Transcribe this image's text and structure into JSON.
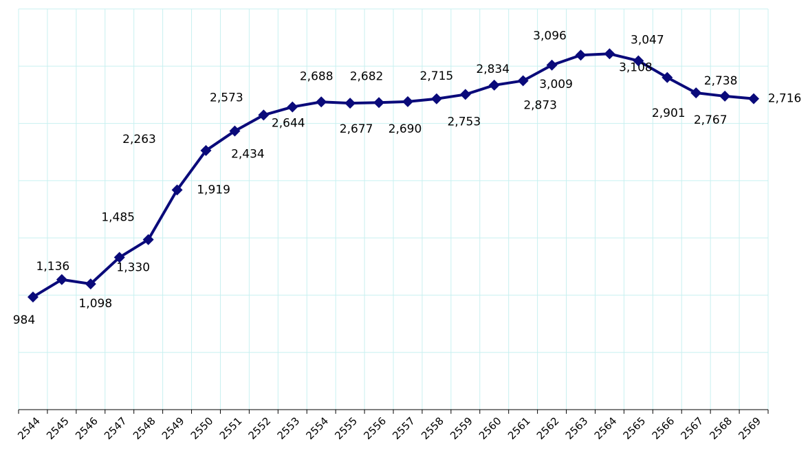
{
  "chart_data": {
    "type": "line",
    "categories": [
      "2544",
      "2545",
      "2546",
      "2547",
      "2548",
      "2549",
      "2550",
      "2551",
      "2552",
      "2553",
      "2554",
      "2555",
      "2556",
      "2557",
      "2558",
      "2559",
      "2560",
      "2561",
      "2562",
      "2563",
      "2564",
      "2565",
      "2566",
      "2567",
      "2568",
      "2569"
    ],
    "series": [
      {
        "color": "#0a0a7a",
        "values": [
          984,
          1136,
          1098,
          1330,
          1485,
          1919,
          2263,
          2434,
          2573,
          2644,
          2688,
          2677,
          2682,
          2690,
          2715,
          2753,
          2834,
          2873,
          3009,
          3096,
          3108,
          3047,
          2901,
          2767,
          2738,
          2716
        ],
        "value_labels": [
          "984",
          "1,136",
          "1,098",
          "1,330",
          "1,485",
          "1,919",
          "2,263",
          "2,434",
          "2,573",
          "2,644",
          "2,688",
          "2,677",
          "2,682",
          "2,690",
          "2,715",
          "2,753",
          "2,834",
          "2,873",
          "3,009",
          "3,096",
          "3,108",
          "3,047",
          "2,901",
          "2,767",
          "2,738",
          "2,716"
        ]
      }
    ],
    "ylim": [
      0,
      3500
    ],
    "yticks": [
      0,
      500,
      1000,
      1500,
      2000,
      2500,
      3000,
      3500
    ],
    "grid": true
  }
}
